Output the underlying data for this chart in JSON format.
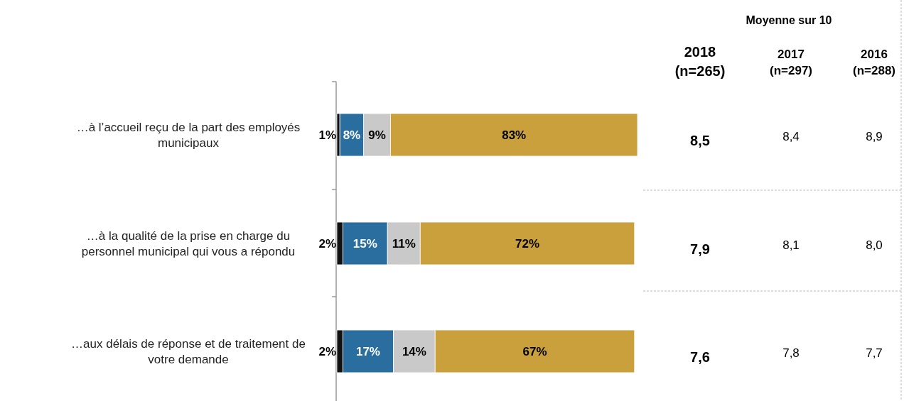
{
  "chart_data": [
    {
      "type": "bar",
      "orientation": "horizontal",
      "stacked": true,
      "categories": [
        "…à l’accueil reçu de la part des employés municipaux",
        "…à la qualité de la prise en charge du personnel municipal qui vous a répondu",
        "…aux délais de réponse et de traitement de votre demande"
      ],
      "series": [
        {
          "color": "#111111",
          "values": [
            1,
            2,
            2
          ],
          "value_labels": [
            "1%",
            "2%",
            "2%"
          ]
        },
        {
          "color": "#2a6e9f",
          "values": [
            8,
            15,
            17
          ],
          "value_labels": [
            "8%",
            "15%",
            "17%"
          ]
        },
        {
          "color": "#c9c9c9",
          "values": [
            9,
            11,
            14
          ],
          "value_labels": [
            "9%",
            "11%",
            "14%"
          ]
        },
        {
          "color": "#c9a03c",
          "values": [
            83,
            72,
            67
          ],
          "value_labels": [
            "83%",
            "72%",
            "67%"
          ]
        }
      ]
    },
    {
      "type": "other",
      "title": "Moyenne sur 10",
      "categories": [
        "2018 (n=265)",
        "2017 (n=297)",
        "2016 (n=288)"
      ],
      "cell_labels": [
        [
          "8,5",
          "8,4",
          "8,9"
        ],
        [
          "7,9",
          "8,1",
          "8,0"
        ],
        [
          "7,6",
          "7,8",
          "7,7"
        ]
      ]
    }
  ]
}
